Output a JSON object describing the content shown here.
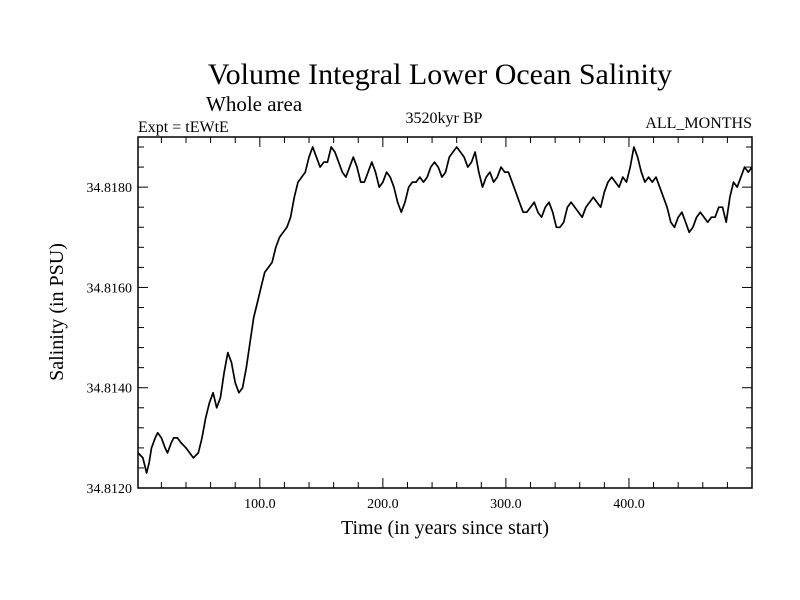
{
  "chart_data": {
    "type": "line",
    "title": "Volume Integral Lower Ocean Salinity",
    "subtitle": "Whole area",
    "left_note": "Expt = tEWtE",
    "center_note": "3520kyr BP",
    "right_note": "ALL_MONTHS",
    "xlabel": "Time (in years since start)",
    "ylabel": "Salinity (in PSU)",
    "xlim": [
      1,
      500
    ],
    "ylim": [
      34.812,
      34.819
    ],
    "x_ticks": [
      {
        "value": 100,
        "label": "100.0"
      },
      {
        "value": 200,
        "label": "200.0"
      },
      {
        "value": 300,
        "label": "300.0"
      },
      {
        "value": 400,
        "label": "400.0"
      }
    ],
    "y_ticks": [
      {
        "value": 34.812,
        "label": "34.8120"
      },
      {
        "value": 34.814,
        "label": "34.8140"
      },
      {
        "value": 34.816,
        "label": "34.8160"
      },
      {
        "value": 34.818,
        "label": "34.8180"
      }
    ],
    "series": [
      {
        "name": "Salinity",
        "color": "#000000",
        "x": [
          1,
          5,
          8,
          10,
          12,
          15,
          17,
          20,
          23,
          25,
          28,
          30,
          33,
          36,
          40,
          43,
          46,
          50,
          53,
          56,
          59,
          62,
          65,
          68,
          71,
          74,
          77,
          80,
          83,
          86,
          89,
          92,
          95,
          98,
          101,
          104,
          107,
          110,
          113,
          116,
          119,
          122,
          125,
          128,
          131,
          134,
          137,
          140,
          143,
          146,
          149,
          152,
          155,
          158,
          161,
          164,
          167,
          170,
          173,
          176,
          179,
          182,
          185,
          188,
          191,
          194,
          197,
          200,
          203,
          206,
          209,
          212,
          215,
          218,
          221,
          224,
          227,
          230,
          233,
          236,
          239,
          242,
          245,
          248,
          251,
          254,
          257,
          260,
          263,
          266,
          269,
          272,
          275,
          278,
          281,
          284,
          287,
          290,
          293,
          296,
          299,
          302,
          305,
          308,
          311,
          314,
          317,
          320,
          323,
          326,
          329,
          332,
          335,
          338,
          341,
          344,
          347,
          350,
          353,
          356,
          359,
          362,
          365,
          368,
          371,
          374,
          377,
          380,
          383,
          386,
          389,
          392,
          395,
          398,
          401,
          404,
          407,
          410,
          413,
          416,
          419,
          422,
          425,
          428,
          431,
          434,
          437,
          440,
          443,
          446,
          449,
          452,
          455,
          458,
          461,
          464,
          467,
          470,
          473,
          476,
          479,
          482,
          485,
          488,
          491,
          494,
          497,
          500
        ],
        "values": [
          34.8127,
          34.8126,
          34.8123,
          34.8125,
          34.8128,
          34.813,
          34.8131,
          34.813,
          34.8128,
          34.8127,
          34.8129,
          34.813,
          34.813,
          34.8129,
          34.8128,
          34.8127,
          34.8126,
          34.8127,
          34.813,
          34.8134,
          34.8137,
          34.8139,
          34.8136,
          34.8138,
          34.8143,
          34.8147,
          34.8145,
          34.8141,
          34.8139,
          34.814,
          34.8144,
          34.8149,
          34.8154,
          34.8157,
          34.816,
          34.8163,
          34.8164,
          34.8165,
          34.8168,
          34.817,
          34.8171,
          34.8172,
          34.8174,
          34.8178,
          34.8181,
          34.8182,
          34.8183,
          34.8186,
          34.8188,
          34.8186,
          34.8184,
          34.8185,
          34.8185,
          34.8188,
          34.8187,
          34.8185,
          34.8183,
          34.8182,
          34.8184,
          34.8186,
          34.8184,
          34.8181,
          34.8181,
          34.8183,
          34.8185,
          34.8183,
          34.818,
          34.8181,
          34.8183,
          34.8182,
          34.818,
          34.8177,
          34.8175,
          34.8177,
          34.818,
          34.8181,
          34.8181,
          34.8182,
          34.8181,
          34.8182,
          34.8184,
          34.8185,
          34.8184,
          34.8182,
          34.8183,
          34.8186,
          34.8187,
          34.8188,
          34.8187,
          34.8186,
          34.8184,
          34.8185,
          34.8187,
          34.8183,
          34.818,
          34.8182,
          34.8183,
          34.8181,
          34.8182,
          34.8184,
          34.8183,
          34.8183,
          34.8181,
          34.8179,
          34.8177,
          34.8175,
          34.8175,
          34.8176,
          34.8177,
          34.8175,
          34.8174,
          34.8176,
          34.8177,
          34.8175,
          34.8172,
          34.8172,
          34.8173,
          34.8176,
          34.8177,
          34.8176,
          34.8175,
          34.8174,
          34.8176,
          34.8177,
          34.8178,
          34.8177,
          34.8176,
          34.8179,
          34.8181,
          34.8182,
          34.8181,
          34.818,
          34.8182,
          34.8181,
          34.8184,
          34.8188,
          34.8186,
          34.8183,
          34.8181,
          34.8182,
          34.8181,
          34.8182,
          34.818,
          34.8178,
          34.8176,
          34.8173,
          34.8172,
          34.8174,
          34.8175,
          34.8173,
          34.8171,
          34.8172,
          34.8174,
          34.8175,
          34.8174,
          34.8173,
          34.8174,
          34.8174,
          34.8176,
          34.8176,
          34.8173,
          34.8178,
          34.8181,
          34.818,
          34.8182,
          34.8184,
          34.8183,
          34.8184
        ]
      }
    ]
  }
}
